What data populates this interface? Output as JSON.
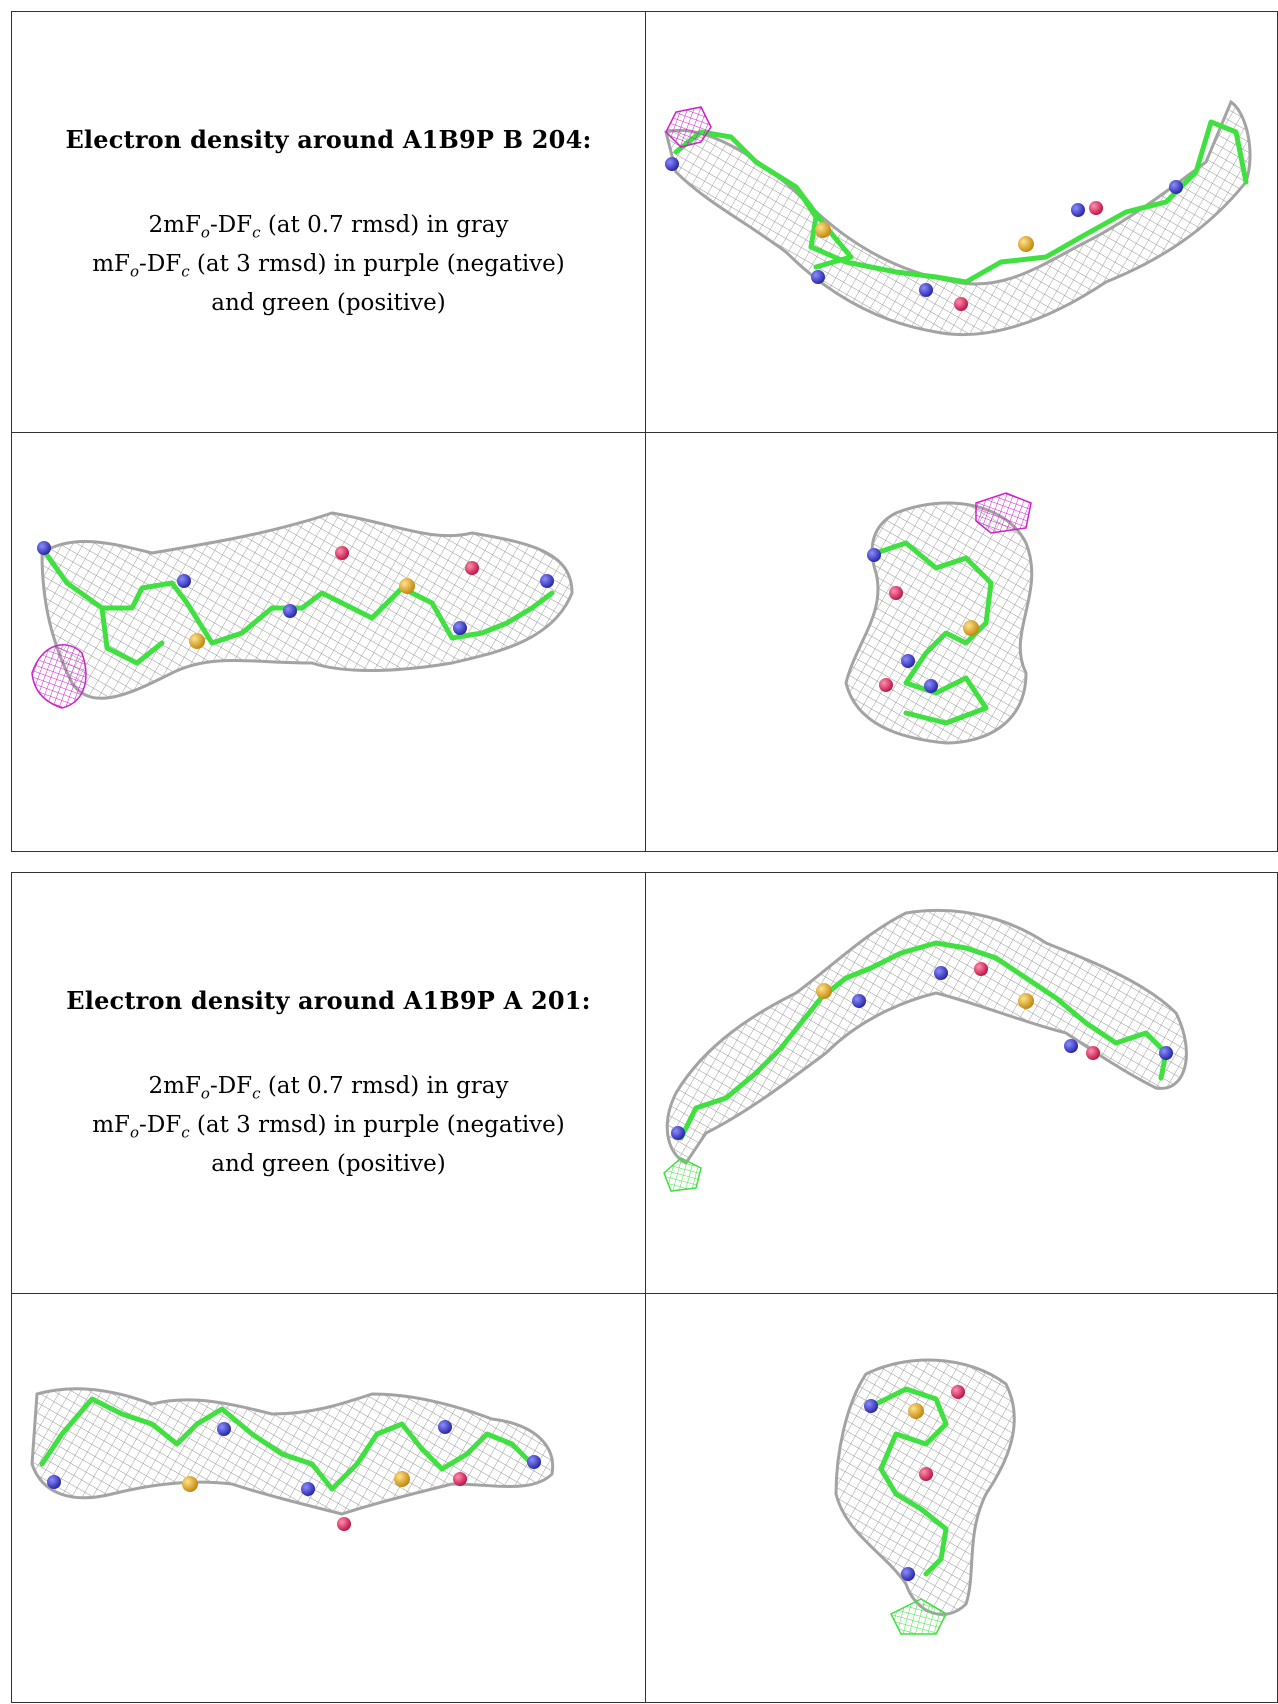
{
  "sections": [
    {
      "title": "Electron density around A1B9P B 204:",
      "line1_a": "2mF",
      "line1_sub1": "o",
      "line1_b": "-DF",
      "line1_sub2": "c",
      "line1_c": " (at 0.7 rmsd) in gray",
      "line2_a": "mF",
      "line2_sub1": "o",
      "line2_b": "-DF",
      "line2_sub2": "c",
      "line2_c": " (at 3 rmsd) in purple (negative)",
      "line3": "and green (positive)"
    },
    {
      "title": "Electron density around A1B9P A 201:",
      "line1_a": "2mF",
      "line1_sub1": "o",
      "line1_b": "-DF",
      "line1_sub2": "c",
      "line1_c": " (at 0.7 rmsd) in gray",
      "line2_a": "mF",
      "line2_sub1": "o",
      "line2_b": "-DF",
      "line2_sub2": "c",
      "line2_c": " (at 3 rmsd) in purple (negative)",
      "line3": "and green (positive)"
    }
  ],
  "colors": {
    "mesh_gray": "#9a9a9a",
    "negative_purple": "#cc22cc",
    "positive_green": "#3fe03f",
    "nitrogen": "#3a3ad0",
    "sulfur": "#e0b030",
    "oxygen": "#e0306a",
    "border": "#333333"
  }
}
